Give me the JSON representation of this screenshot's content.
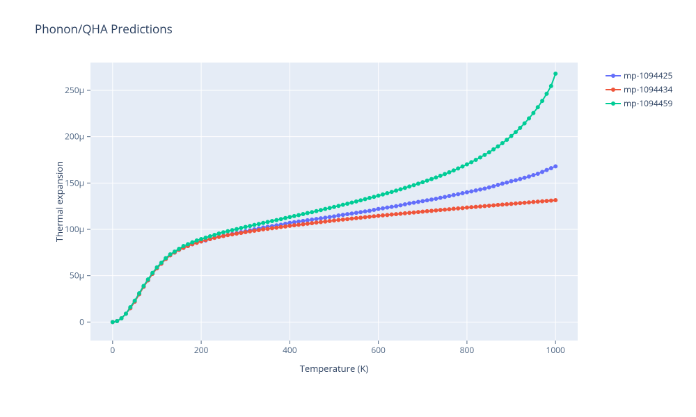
{
  "chart": {
    "title": "Phonon/QHA Predictions",
    "type": "line",
    "xlabel": "Temperature (K)",
    "ylabel": "Thermal expansion",
    "xlim": [
      -50,
      1050
    ],
    "ylim": [
      -20,
      280
    ],
    "xtick_values": [
      0,
      200,
      400,
      600,
      800,
      1000
    ],
    "xtick_labels": [
      "0",
      "200",
      "400",
      "600",
      "800",
      "1000"
    ],
    "ytick_values": [
      0,
      50,
      100,
      150,
      200,
      250
    ],
    "ytick_labels": [
      "0",
      "50μ",
      "100μ",
      "150μ",
      "200μ",
      "250μ"
    ],
    "plot_bgcolor": "#e5ecf6",
    "paper_bgcolor": "#ffffff",
    "gridline_color": "#ffffff",
    "zeroline_color": "#ffffff",
    "tick_color": "#506784",
    "title_fontsize": 17,
    "axis_label_fontsize": 13,
    "tick_label_fontsize": 12,
    "line_width": 2,
    "marker_size": 5,
    "marker_style": "circle",
    "series": [
      {
        "name": "mp-1094425",
        "color": "#636efa",
        "x": [
          0,
          10,
          20,
          30,
          40,
          50,
          60,
          70,
          80,
          90,
          100,
          110,
          120,
          130,
          140,
          150,
          160,
          170,
          180,
          190,
          200,
          210,
          220,
          230,
          240,
          250,
          260,
          270,
          280,
          290,
          300,
          310,
          320,
          330,
          340,
          350,
          360,
          370,
          380,
          390,
          400,
          410,
          420,
          430,
          440,
          450,
          460,
          470,
          480,
          490,
          500,
          510,
          520,
          530,
          540,
          550,
          560,
          570,
          580,
          590,
          600,
          610,
          620,
          630,
          640,
          650,
          660,
          670,
          680,
          690,
          700,
          710,
          720,
          730,
          740,
          750,
          760,
          770,
          780,
          790,
          800,
          810,
          820,
          830,
          840,
          850,
          860,
          870,
          880,
          890,
          900,
          910,
          920,
          930,
          940,
          950,
          960,
          970,
          980,
          990,
          1000
        ],
        "y": [
          0,
          1,
          4,
          9,
          15,
          22,
          30,
          38,
          45,
          52,
          58,
          63,
          68,
          72,
          75,
          78,
          80,
          82,
          84,
          86,
          87,
          88,
          89.5,
          91,
          92,
          93,
          94,
          95,
          96,
          97,
          98,
          99,
          100,
          101,
          102,
          102.8,
          103.5,
          104.3,
          105,
          106,
          107,
          107.7,
          108.4,
          109.1,
          109.8,
          110.5,
          111.2,
          111.9,
          112.6,
          113.3,
          114,
          115,
          115.7,
          116.4,
          117.1,
          117.8,
          118.6,
          119.3,
          120,
          121,
          122,
          122.7,
          123.5,
          124.3,
          125,
          126,
          127,
          128,
          128.8,
          129.6,
          130.5,
          131.3,
          132.2,
          133,
          134,
          135,
          136,
          137,
          138,
          139,
          140,
          141,
          142,
          143,
          144,
          145.3,
          146.5,
          148,
          149.3,
          150.5,
          152,
          153,
          154.3,
          155.7,
          157,
          158.5,
          160,
          162,
          164,
          166,
          168
        ]
      },
      {
        "name": "mp-1094434",
        "color": "#ef553b",
        "x": [
          0,
          10,
          20,
          30,
          40,
          50,
          60,
          70,
          80,
          90,
          100,
          110,
          120,
          130,
          140,
          150,
          160,
          170,
          180,
          190,
          200,
          210,
          220,
          230,
          240,
          250,
          260,
          270,
          280,
          290,
          300,
          310,
          320,
          330,
          340,
          350,
          360,
          370,
          380,
          390,
          400,
          410,
          420,
          430,
          440,
          450,
          460,
          470,
          480,
          490,
          500,
          510,
          520,
          530,
          540,
          550,
          560,
          570,
          580,
          590,
          600,
          610,
          620,
          630,
          640,
          650,
          660,
          670,
          680,
          690,
          700,
          710,
          720,
          730,
          740,
          750,
          760,
          770,
          780,
          790,
          800,
          810,
          820,
          830,
          840,
          850,
          860,
          870,
          880,
          890,
          900,
          910,
          920,
          930,
          940,
          950,
          960,
          970,
          980,
          990,
          1000
        ],
        "y": [
          0,
          1,
          4,
          9,
          15,
          22,
          30,
          38,
          45,
          52,
          58,
          63,
          68,
          72,
          75,
          78,
          80,
          82,
          84,
          85.5,
          87,
          88.5,
          89.5,
          90.8,
          91.8,
          92.8,
          93.8,
          94.6,
          95.4,
          96.2,
          97,
          97.8,
          98.5,
          99.2,
          100,
          100.6,
          101.2,
          101.8,
          102.5,
          103.1,
          103.8,
          104.4,
          105,
          105.5,
          106.1,
          106.7,
          107.3,
          107.9,
          108.4,
          109,
          109.6,
          110.1,
          110.6,
          111.1,
          111.6,
          112.1,
          112.6,
          113.1,
          113.6,
          114.1,
          114.6,
          115.1,
          115.5,
          116,
          116.4,
          116.9,
          117.3,
          117.8,
          118.2,
          118.7,
          119.1,
          119.6,
          120,
          120.4,
          120.9,
          121.3,
          121.7,
          122.2,
          122.6,
          123,
          123.5,
          123.9,
          124.3,
          124.7,
          125.1,
          125.5,
          125.9,
          126.3,
          126.7,
          127.1,
          127.5,
          127.9,
          128.3,
          128.7,
          129.1,
          129.5,
          129.9,
          130.3,
          130.7,
          131,
          131.5
        ]
      },
      {
        "name": "mp-1094459",
        "color": "#00cc96",
        "x": [
          0,
          10,
          20,
          30,
          40,
          50,
          60,
          70,
          80,
          90,
          100,
          110,
          120,
          130,
          140,
          150,
          160,
          170,
          180,
          190,
          200,
          210,
          220,
          230,
          240,
          250,
          260,
          270,
          280,
          290,
          300,
          310,
          320,
          330,
          340,
          350,
          360,
          370,
          380,
          390,
          400,
          410,
          420,
          430,
          440,
          450,
          460,
          470,
          480,
          490,
          500,
          510,
          520,
          530,
          540,
          550,
          560,
          570,
          580,
          590,
          600,
          610,
          620,
          630,
          640,
          650,
          660,
          670,
          680,
          690,
          700,
          710,
          720,
          730,
          740,
          750,
          760,
          770,
          780,
          790,
          800,
          810,
          820,
          830,
          840,
          850,
          860,
          870,
          880,
          890,
          900,
          910,
          920,
          930,
          940,
          950,
          960,
          970,
          980,
          990,
          1000
        ],
        "y": [
          0,
          1,
          4,
          9,
          16,
          23,
          31,
          39,
          46,
          53,
          59,
          64,
          69,
          73,
          76,
          79,
          82,
          84,
          86,
          88,
          89.5,
          91,
          92.5,
          94,
          95.5,
          96.8,
          98,
          99.2,
          100.3,
          101.5,
          102.6,
          103.7,
          104.8,
          105.8,
          106.9,
          108,
          109,
          110,
          111.1,
          112.2,
          113.3,
          114.3,
          115.4,
          116.5,
          117.6,
          118.6,
          119.7,
          120.8,
          122,
          123.1,
          124.2,
          125.3,
          126.5,
          127.7,
          128.9,
          130.1,
          131.3,
          132.6,
          133.8,
          135.1,
          136.4,
          137.7,
          139,
          140.4,
          141.8,
          143.2,
          144.7,
          146.2,
          147.7,
          149.3,
          150.9,
          152.6,
          154.3,
          156,
          157.8,
          159.7,
          161.6,
          163.6,
          165.7,
          167.9,
          170.1,
          172.5,
          175,
          177.6,
          180.3,
          183.2,
          186.3,
          189.5,
          193,
          196.7,
          200.7,
          204.9,
          209.5,
          214.4,
          219.7,
          225.5,
          231.8,
          238.7,
          246.3,
          254.7,
          268
        ]
      }
    ]
  },
  "legend": {
    "items": [
      {
        "label": "mp-1094425",
        "color": "#636efa"
      },
      {
        "label": "mp-1094434",
        "color": "#ef553b"
      },
      {
        "label": "mp-1094459",
        "color": "#00cc96"
      }
    ]
  }
}
